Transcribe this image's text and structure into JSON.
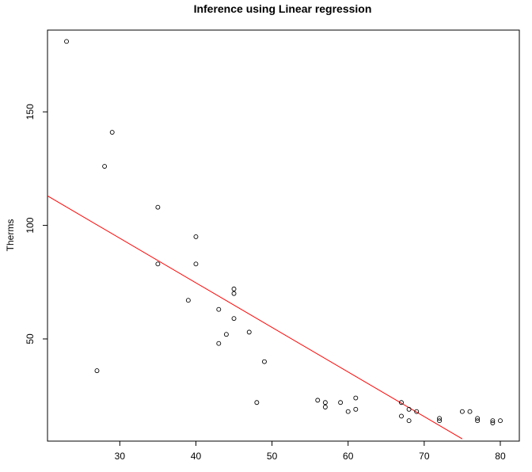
{
  "chart_data": {
    "type": "scatter",
    "title": "Inference using Linear regression",
    "xlabel": "",
    "ylabel": "Therms",
    "xlim": [
      20.5,
      82.5
    ],
    "ylim": [
      5,
      186
    ],
    "x_ticks": [
      30,
      40,
      50,
      60,
      70,
      80
    ],
    "y_ticks": [
      50,
      100,
      150
    ],
    "grid": false,
    "points_x": [
      23,
      27,
      28,
      29,
      35,
      35,
      39,
      40,
      40,
      43,
      43,
      44,
      45,
      45,
      45,
      47,
      48,
      49,
      56,
      57,
      57,
      59,
      60,
      61,
      61,
      67,
      67,
      68,
      68,
      69,
      72,
      72,
      75,
      76,
      77,
      77,
      79,
      79,
      80
    ],
    "points_y": [
      181,
      36,
      126,
      141,
      108,
      83,
      67,
      95,
      83,
      63,
      48,
      52,
      72,
      70,
      59,
      53,
      22,
      40,
      23,
      22,
      20,
      22,
      18,
      24,
      19,
      22,
      16,
      19,
      14,
      18,
      15,
      14,
      18,
      18,
      15,
      14,
      14,
      13,
      14
    ],
    "regression_line": {
      "color": "#ff0000",
      "x": [
        20.5,
        75
      ],
      "y": [
        113,
        6
      ]
    },
    "point_color": "#000000"
  }
}
